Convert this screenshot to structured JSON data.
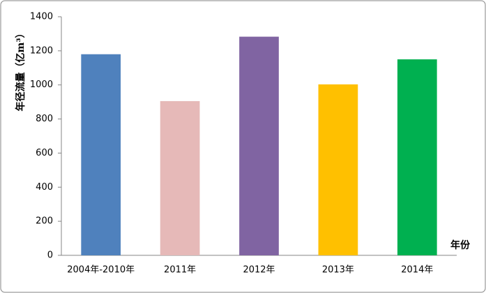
{
  "chart_data": {
    "type": "bar",
    "y_label": "年径流量（亿m³）",
    "x_label": "年份",
    "categories": [
      "2004年-2010年",
      "2011年",
      "2012年",
      "2013年",
      "2014年"
    ],
    "values": [
      1180,
      905,
      1283,
      1003,
      1150
    ],
    "colors": [
      "#4f81bd",
      "#e6b9b8",
      "#8064a2",
      "#ffc000",
      "#00b050"
    ],
    "ylim": [
      0,
      1400
    ],
    "yticks": [
      0,
      200,
      400,
      600,
      800,
      1000,
      1200,
      1400
    ],
    "grid": false
  }
}
